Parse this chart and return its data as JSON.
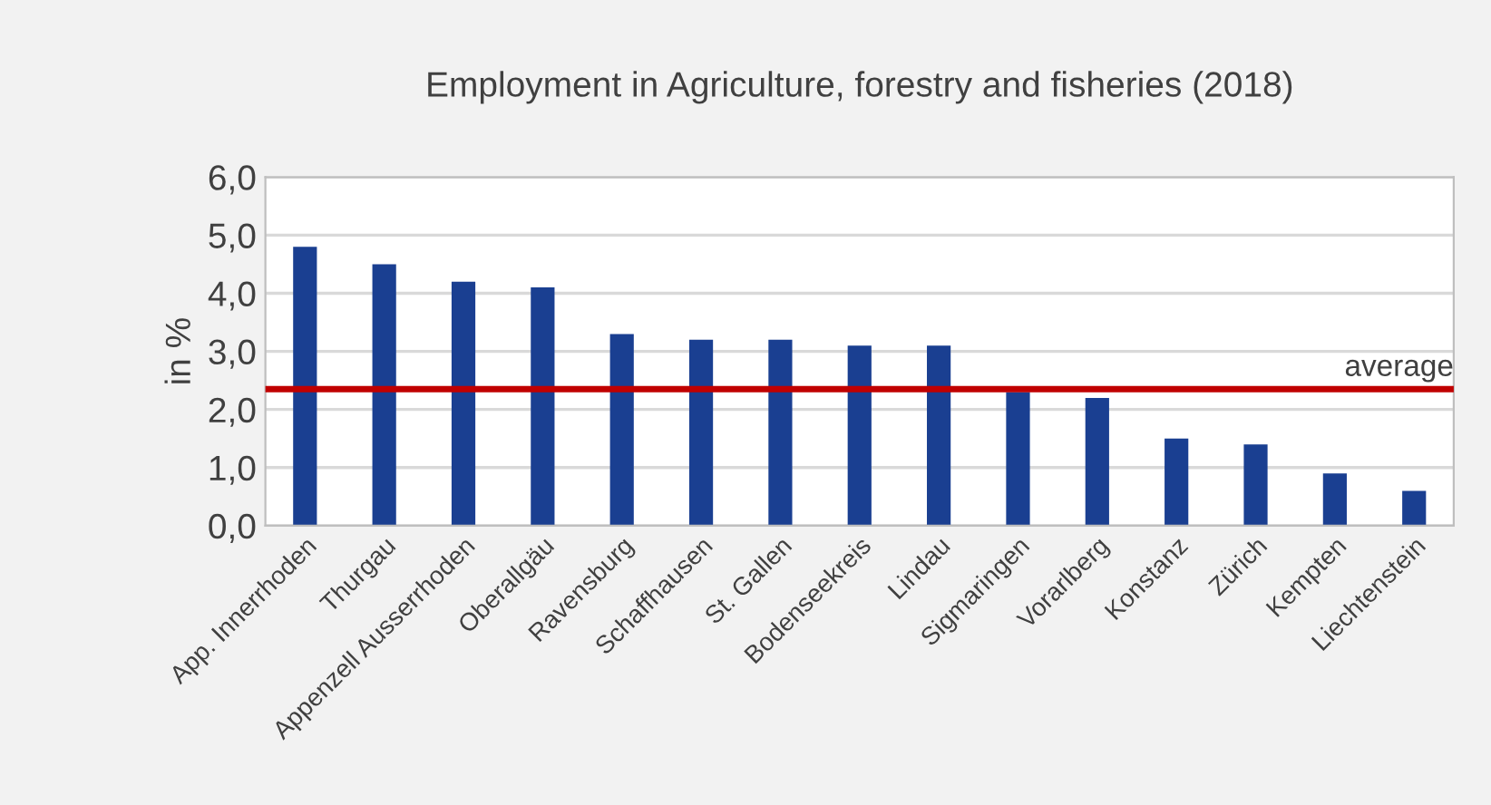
{
  "chart_data": {
    "type": "bar",
    "title": "Employment in Agriculture, forestry and fisheries (2018)",
    "ylabel": "in %",
    "categories": [
      "App. Innerrhoden",
      "Thurgau",
      "Appenzell Ausserrhoden",
      "Oberallgäu",
      "Ravensburg",
      "Schaffhausen",
      "St. Gallen",
      "Bodenseekreis",
      "Lindau",
      "Sigmaringen",
      "Vorarlberg",
      "Konstanz",
      "Zürich",
      "Kempten",
      "Liechtenstein"
    ],
    "values": [
      4.8,
      4.5,
      4.2,
      4.1,
      3.3,
      3.2,
      3.2,
      3.1,
      3.1,
      2.3,
      2.2,
      1.5,
      1.4,
      0.9,
      0.6
    ],
    "color": "#1a3f91",
    "ylim": [
      0,
      6
    ],
    "yticks": [
      {
        "value": 0,
        "label": "0,0"
      },
      {
        "value": 1,
        "label": "1,0"
      },
      {
        "value": 2,
        "label": "2,0"
      },
      {
        "value": 3,
        "label": "3,0"
      },
      {
        "value": 4,
        "label": "4,0"
      },
      {
        "value": 5,
        "label": "5,0"
      },
      {
        "value": 6,
        "label": "6,0"
      }
    ],
    "grid": "y",
    "ref_lines": [
      {
        "axis": "y",
        "value": 2.35,
        "label": "average",
        "color": "#c00000"
      }
    ]
  }
}
